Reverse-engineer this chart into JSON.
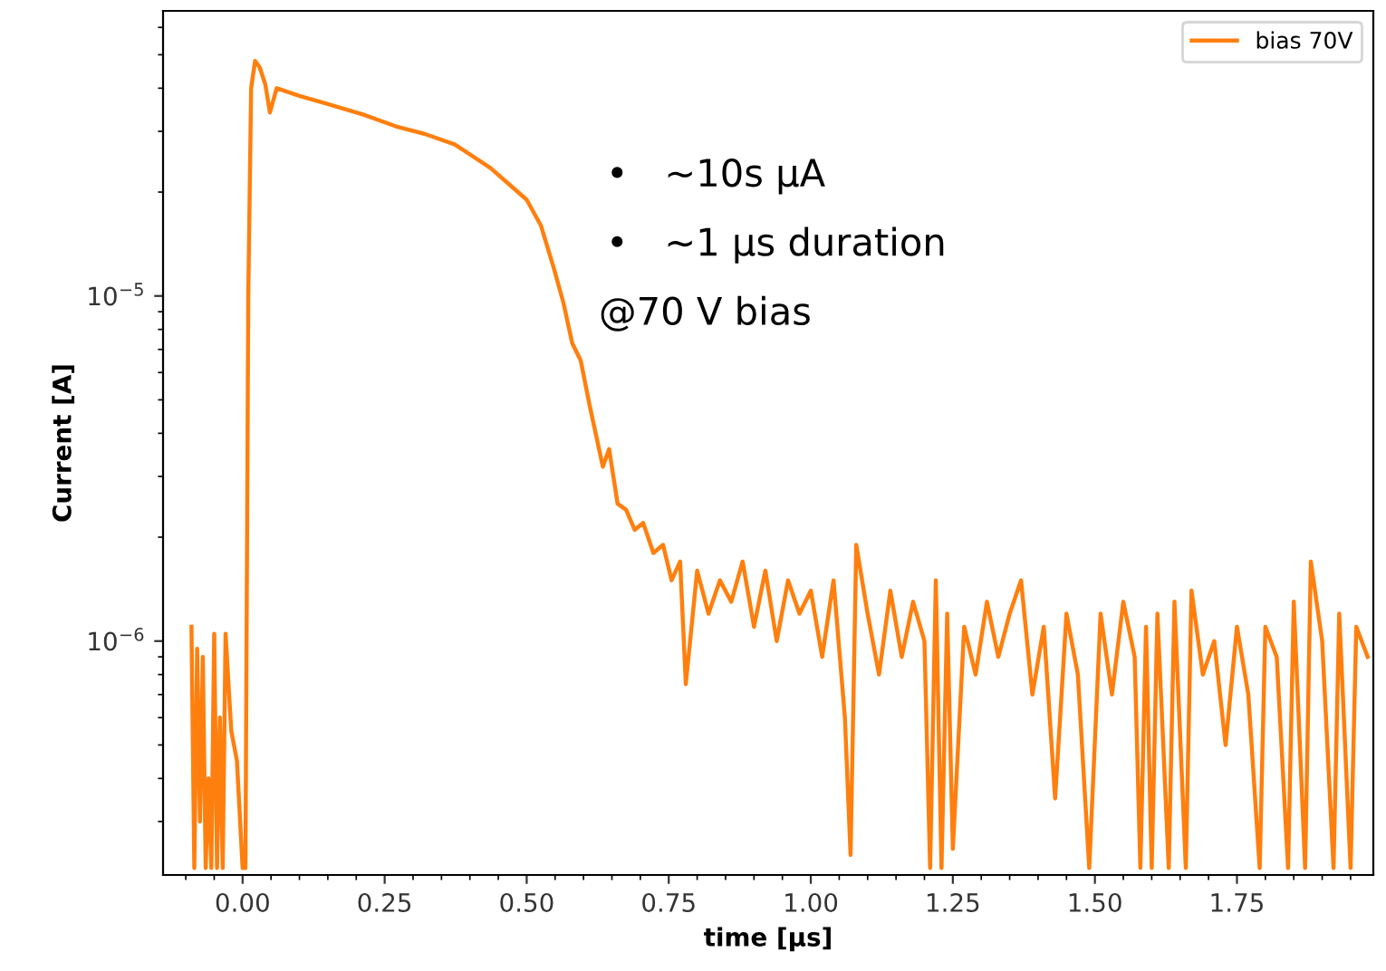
{
  "chart_data": {
    "type": "line",
    "xlabel": "time [µs]",
    "ylabel": "Current [A]",
    "log": "y",
    "legend": "top right",
    "grid": false,
    "marker": "none",
    "line_style": "solid",
    "xlim": [
      -0.14,
      1.99
    ],
    "ylim": [
      2.1e-07,
      6.7e-05
    ],
    "xticks": [
      {
        "value": 0,
        "label": "0.00"
      },
      {
        "value": 0.25,
        "label": "0.25"
      },
      {
        "value": 0.5,
        "label": "0.50"
      },
      {
        "value": 0.75,
        "label": "0.75"
      },
      {
        "value": 1.0,
        "label": "1.00"
      },
      {
        "value": 1.25,
        "label": "1.25"
      },
      {
        "value": 1.5,
        "label": "1.50"
      },
      {
        "value": 1.75,
        "label": "1.75"
      }
    ],
    "yticks": [
      {
        "value": 1e-06,
        "label": "10$^{−6}$"
      },
      {
        "value": 1e-05,
        "label": "10$^{−5}$"
      }
    ],
    "annotations": [
      "•   ~10s µA",
      "•   ~1 µs duration",
      "@70 V bias"
    ],
    "series": [
      {
        "name": "bias 70V",
        "color": "#ff7f0e",
        "x": [
          -0.09,
          -0.085,
          -0.08,
          -0.075,
          -0.07,
          -0.065,
          -0.06,
          -0.055,
          -0.05,
          -0.045,
          -0.04,
          -0.035,
          -0.03,
          -0.02,
          -0.01,
          0.0,
          0.005,
          0.01,
          0.015,
          0.022,
          0.03,
          0.04,
          0.048,
          0.06,
          0.1,
          0.15,
          0.213,
          0.27,
          0.32,
          0.373,
          0.436,
          0.47,
          0.5,
          0.525,
          0.548,
          0.565,
          0.58,
          0.595,
          0.611,
          0.634,
          0.645,
          0.66,
          0.675,
          0.69,
          0.705,
          0.723,
          0.74,
          0.755,
          0.77,
          0.78,
          0.8,
          0.82,
          0.84,
          0.86,
          0.88,
          0.9,
          0.92,
          0.94,
          0.96,
          0.98,
          1.0,
          1.02,
          1.04,
          1.06,
          1.07,
          1.08,
          1.1,
          1.12,
          1.14,
          1.16,
          1.18,
          1.2,
          1.21,
          1.22,
          1.23,
          1.24,
          1.25,
          1.27,
          1.29,
          1.31,
          1.33,
          1.35,
          1.37,
          1.39,
          1.41,
          1.43,
          1.45,
          1.47,
          1.49,
          1.51,
          1.53,
          1.55,
          1.57,
          1.58,
          1.59,
          1.6,
          1.61,
          1.63,
          1.64,
          1.66,
          1.67,
          1.69,
          1.71,
          1.73,
          1.75,
          1.77,
          1.79,
          1.8,
          1.82,
          1.84,
          1.85,
          1.87,
          1.88,
          1.9,
          1.92,
          1.93,
          1.95,
          1.96,
          1.98
        ],
        "values": [
          1.1e-06,
          2.2e-07,
          9.5e-07,
          3e-07,
          9e-07,
          2.2e-07,
          4e-07,
          2.2e-07,
          1.05e-06,
          2.2e-07,
          6e-07,
          2.2e-07,
          1.05e-06,
          5.5e-07,
          4.5e-07,
          2.2e-07,
          2.2e-07,
          1e-05,
          4e-05,
          4.8e-05,
          4.6e-05,
          4.1e-05,
          3.4e-05,
          4e-05,
          3.8e-05,
          3.6e-05,
          3.35e-05,
          3.1e-05,
          2.95e-05,
          2.75e-05,
          2.35e-05,
          2.1e-05,
          1.9e-05,
          1.6e-05,
          1.2e-05,
          9.5e-06,
          7.3e-06,
          6.5e-06,
          4.8e-06,
          3.2e-06,
          3.6e-06,
          2.5e-06,
          2.4e-06,
          2.1e-06,
          2.2e-06,
          1.8e-06,
          1.9e-06,
          1.5e-06,
          1.7e-06,
          7.5e-07,
          1.6e-06,
          1.2e-06,
          1.5e-06,
          1.3e-06,
          1.7e-06,
          1.1e-06,
          1.6e-06,
          1e-06,
          1.5e-06,
          1.2e-06,
          1.4e-06,
          9e-07,
          1.5e-06,
          6e-07,
          2.4e-07,
          1.9e-06,
          1.2e-06,
          8e-07,
          1.4e-06,
          9e-07,
          1.3e-06,
          1e-06,
          2.2e-07,
          1.5e-06,
          2.2e-07,
          1.2e-06,
          2.5e-07,
          1.1e-06,
          8e-07,
          1.3e-06,
          9e-07,
          1.2e-06,
          1.5e-06,
          7e-07,
          1.1e-06,
          3.5e-07,
          1.2e-06,
          8e-07,
          2.2e-07,
          1.2e-06,
          7e-07,
          1.3e-06,
          9e-07,
          2.2e-07,
          1.1e-06,
          2.2e-07,
          1.2e-06,
          2.2e-07,
          1.3e-06,
          2.2e-07,
          1.4e-06,
          8e-07,
          1e-06,
          5e-07,
          1.1e-06,
          7e-07,
          2.2e-07,
          1.1e-06,
          9e-07,
          2.2e-07,
          1.3e-06,
          2.2e-07,
          1.7e-06,
          1e-06,
          2.2e-07,
          1.2e-06,
          2.2e-07,
          1.1e-06,
          9e-07
        ]
      }
    ]
  }
}
